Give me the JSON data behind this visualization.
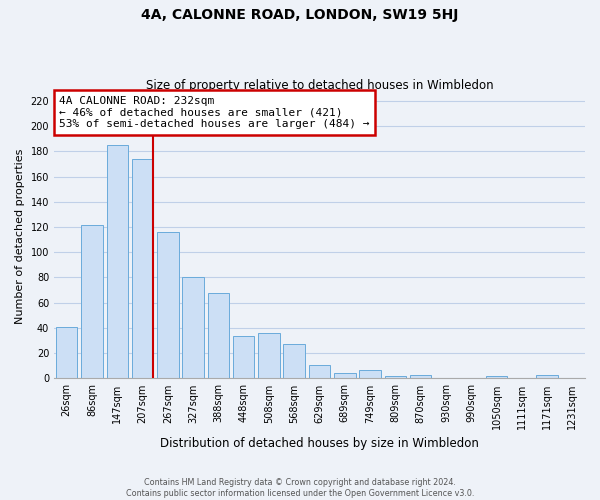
{
  "title": "4A, CALONNE ROAD, LONDON, SW19 5HJ",
  "subtitle": "Size of property relative to detached houses in Wimbledon",
  "xlabel": "Distribution of detached houses by size in Wimbledon",
  "ylabel": "Number of detached properties",
  "footer_line1": "Contains HM Land Registry data © Crown copyright and database right 2024.",
  "footer_line2": "Contains public sector information licensed under the Open Government Licence v3.0.",
  "bar_labels": [
    "26sqm",
    "86sqm",
    "147sqm",
    "207sqm",
    "267sqm",
    "327sqm",
    "388sqm",
    "448sqm",
    "508sqm",
    "568sqm",
    "629sqm",
    "689sqm",
    "749sqm",
    "809sqm",
    "870sqm",
    "930sqm",
    "990sqm",
    "1050sqm",
    "1111sqm",
    "1171sqm",
    "1231sqm"
  ],
  "bar_values": [
    41,
    122,
    185,
    174,
    116,
    80,
    68,
    34,
    36,
    27,
    11,
    4,
    7,
    2,
    3,
    0,
    0,
    2,
    0,
    3,
    0
  ],
  "bar_color": "#ccdff5",
  "bar_edge_color": "#6aabdb",
  "grid_color": "#c0d0e8",
  "bg_color": "#eef2f8",
  "annotation_text_line1": "4A CALONNE ROAD: 232sqm",
  "annotation_text_line2": "← 46% of detached houses are smaller (421)",
  "annotation_text_line3": "53% of semi-detached houses are larger (484) →",
  "red_line_bar_index": 3,
  "ylim": [
    0,
    225
  ],
  "yticks": [
    0,
    20,
    40,
    60,
    80,
    100,
    120,
    140,
    160,
    180,
    200,
    220
  ],
  "annotation_box_color": "white",
  "annotation_box_edge_color": "#cc0000",
  "red_line_color": "#cc0000",
  "title_fontsize": 10,
  "subtitle_fontsize": 8.5,
  "ylabel_fontsize": 8,
  "xlabel_fontsize": 8.5,
  "tick_fontsize": 7,
  "annotation_fontsize": 8
}
